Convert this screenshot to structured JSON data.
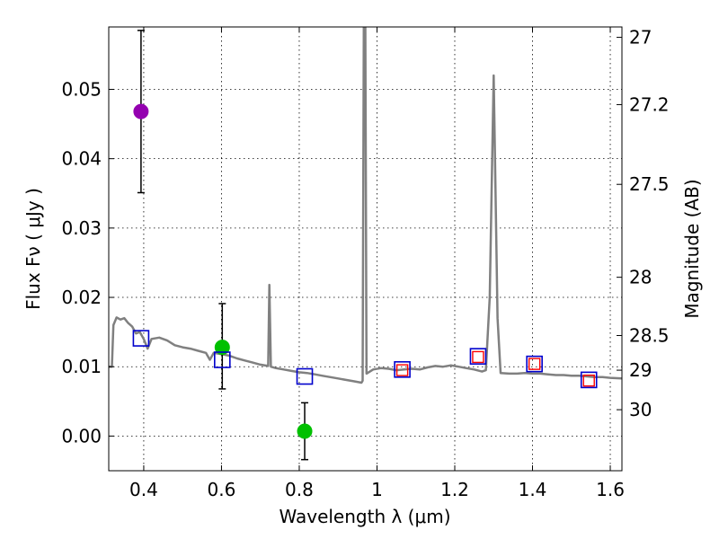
{
  "chart_data": {
    "type": "scatter",
    "xlabel": "Wavelength  λ (μm)",
    "ylabel": "Flux  Fν  ( μJy )",
    "ylabel2": "Magnitude (AB)",
    "xlim": [
      0.31,
      1.63
    ],
    "ylim": [
      -0.005,
      0.059
    ],
    "grid": true,
    "x_ticks": [
      0.4,
      0.6,
      0.8,
      1.0,
      1.2,
      1.4,
      1.6
    ],
    "x_tick_labels": [
      "0.4",
      "0.6",
      "0.8",
      "1",
      "1.2",
      "1.4",
      "1.6"
    ],
    "y_ticks": [
      0.0,
      0.01,
      0.02,
      0.03,
      0.04,
      0.05
    ],
    "y_tick_labels": [
      "0.00",
      "0.01",
      "0.02",
      "0.03",
      "0.04",
      "0.05"
    ],
    "mag_ticks": [
      {
        "label": "27",
        "flux": 0.0575
      },
      {
        "label": "27.2",
        "flux": 0.0478
      },
      {
        "label": "27.5",
        "flux": 0.0363
      },
      {
        "label": "28",
        "flux": 0.0229
      },
      {
        "label": "28.5",
        "flux": 0.0145
      },
      {
        "label": "29",
        "flux": 0.0095
      },
      {
        "label": "30",
        "flux": 0.0038
      }
    ],
    "series": [
      {
        "name": "observed-violet",
        "type": "points",
        "color": "#9400b0",
        "points": [
          {
            "x": 0.393,
            "y": 0.0468,
            "err_low": 0.0117,
            "err_high": 0.0117
          }
        ]
      },
      {
        "name": "observed-green",
        "type": "points",
        "color": "#00c000",
        "points": [
          {
            "x": 0.602,
            "y": 0.0128,
            "err_low": 0.006,
            "err_high": 0.0063
          },
          {
            "x": 0.814,
            "y": 0.0007,
            "err_low": 0.0041,
            "err_high": 0.0041
          }
        ]
      },
      {
        "name": "model-photometry",
        "type": "squares",
        "color": "#0000cc",
        "points": [
          {
            "x": 0.393,
            "y": 0.0141
          },
          {
            "x": 0.602,
            "y": 0.011
          },
          {
            "x": 0.814,
            "y": 0.0086
          },
          {
            "x": 1.065,
            "y": 0.0096
          },
          {
            "x": 1.26,
            "y": 0.0115
          },
          {
            "x": 1.405,
            "y": 0.0104
          },
          {
            "x": 1.545,
            "y": 0.0081
          }
        ]
      },
      {
        "name": "observed-ir",
        "type": "small-squares",
        "color": "#ff0000",
        "points": [
          {
            "x": 1.065,
            "y": 0.0095
          },
          {
            "x": 1.26,
            "y": 0.0114
          },
          {
            "x": 1.405,
            "y": 0.0104
          },
          {
            "x": 1.545,
            "y": 0.008
          }
        ]
      },
      {
        "name": "model-sed",
        "type": "line",
        "color": "#808080",
        "points": [
          {
            "x": 0.31,
            "y": 0.01
          },
          {
            "x": 0.318,
            "y": 0.01
          },
          {
            "x": 0.322,
            "y": 0.016
          },
          {
            "x": 0.33,
            "y": 0.0171
          },
          {
            "x": 0.34,
            "y": 0.0168
          },
          {
            "x": 0.35,
            "y": 0.017
          },
          {
            "x": 0.36,
            "y": 0.0163
          },
          {
            "x": 0.37,
            "y": 0.0158
          },
          {
            "x": 0.38,
            "y": 0.0148
          },
          {
            "x": 0.39,
            "y": 0.015
          },
          {
            "x": 0.4,
            "y": 0.014
          },
          {
            "x": 0.41,
            "y": 0.0126
          },
          {
            "x": 0.42,
            "y": 0.014
          },
          {
            "x": 0.44,
            "y": 0.0142
          },
          {
            "x": 0.46,
            "y": 0.0138
          },
          {
            "x": 0.48,
            "y": 0.0131
          },
          {
            "x": 0.5,
            "y": 0.0128
          },
          {
            "x": 0.52,
            "y": 0.0126
          },
          {
            "x": 0.54,
            "y": 0.0123
          },
          {
            "x": 0.56,
            "y": 0.012
          },
          {
            "x": 0.57,
            "y": 0.011
          },
          {
            "x": 0.58,
            "y": 0.012
          },
          {
            "x": 0.6,
            "y": 0.0118
          },
          {
            "x": 0.62,
            "y": 0.0116
          },
          {
            "x": 0.64,
            "y": 0.0112
          },
          {
            "x": 0.66,
            "y": 0.0109
          },
          {
            "x": 0.68,
            "y": 0.0106
          },
          {
            "x": 0.7,
            "y": 0.0103
          },
          {
            "x": 0.72,
            "y": 0.0101
          },
          {
            "x": 0.723,
            "y": 0.0218
          },
          {
            "x": 0.727,
            "y": 0.01
          },
          {
            "x": 0.74,
            "y": 0.0098
          },
          {
            "x": 0.76,
            "y": 0.0096
          },
          {
            "x": 0.78,
            "y": 0.0094
          },
          {
            "x": 0.8,
            "y": 0.0092
          },
          {
            "x": 0.82,
            "y": 0.0091
          },
          {
            "x": 0.84,
            "y": 0.0089
          },
          {
            "x": 0.86,
            "y": 0.0087
          },
          {
            "x": 0.88,
            "y": 0.0085
          },
          {
            "x": 0.9,
            "y": 0.0083
          },
          {
            "x": 0.92,
            "y": 0.0081
          },
          {
            "x": 0.94,
            "y": 0.0079
          },
          {
            "x": 0.96,
            "y": 0.0077
          },
          {
            "x": 0.963,
            "y": 0.008
          },
          {
            "x": 0.966,
            "y": 0.059
          },
          {
            "x": 0.97,
            "y": 0.059
          },
          {
            "x": 0.973,
            "y": 0.009
          },
          {
            "x": 0.99,
            "y": 0.0096
          },
          {
            "x": 1.01,
            "y": 0.0098
          },
          {
            "x": 1.03,
            "y": 0.0097
          },
          {
            "x": 1.05,
            "y": 0.0095
          },
          {
            "x": 1.07,
            "y": 0.0096
          },
          {
            "x": 1.09,
            "y": 0.0097
          },
          {
            "x": 1.11,
            "y": 0.0096
          },
          {
            "x": 1.13,
            "y": 0.0099
          },
          {
            "x": 1.15,
            "y": 0.0101
          },
          {
            "x": 1.17,
            "y": 0.01
          },
          {
            "x": 1.19,
            "y": 0.0102
          },
          {
            "x": 1.21,
            "y": 0.01
          },
          {
            "x": 1.23,
            "y": 0.0098
          },
          {
            "x": 1.25,
            "y": 0.0096
          },
          {
            "x": 1.27,
            "y": 0.0093
          },
          {
            "x": 1.28,
            "y": 0.0095
          },
          {
            "x": 1.29,
            "y": 0.02
          },
          {
            "x": 1.3,
            "y": 0.052
          },
          {
            "x": 1.31,
            "y": 0.017
          },
          {
            "x": 1.318,
            "y": 0.0091
          },
          {
            "x": 1.34,
            "y": 0.009
          },
          {
            "x": 1.36,
            "y": 0.009
          },
          {
            "x": 1.38,
            "y": 0.0091
          },
          {
            "x": 1.4,
            "y": 0.009
          },
          {
            "x": 1.42,
            "y": 0.009
          },
          {
            "x": 1.44,
            "y": 0.0089
          },
          {
            "x": 1.46,
            "y": 0.0088
          },
          {
            "x": 1.48,
            "y": 0.0088
          },
          {
            "x": 1.5,
            "y": 0.0087
          },
          {
            "x": 1.52,
            "y": 0.0087
          },
          {
            "x": 1.54,
            "y": 0.0086
          },
          {
            "x": 1.56,
            "y": 0.0085
          },
          {
            "x": 1.58,
            "y": 0.0085
          },
          {
            "x": 1.6,
            "y": 0.0084
          },
          {
            "x": 1.63,
            "y": 0.0083
          }
        ]
      }
    ]
  }
}
